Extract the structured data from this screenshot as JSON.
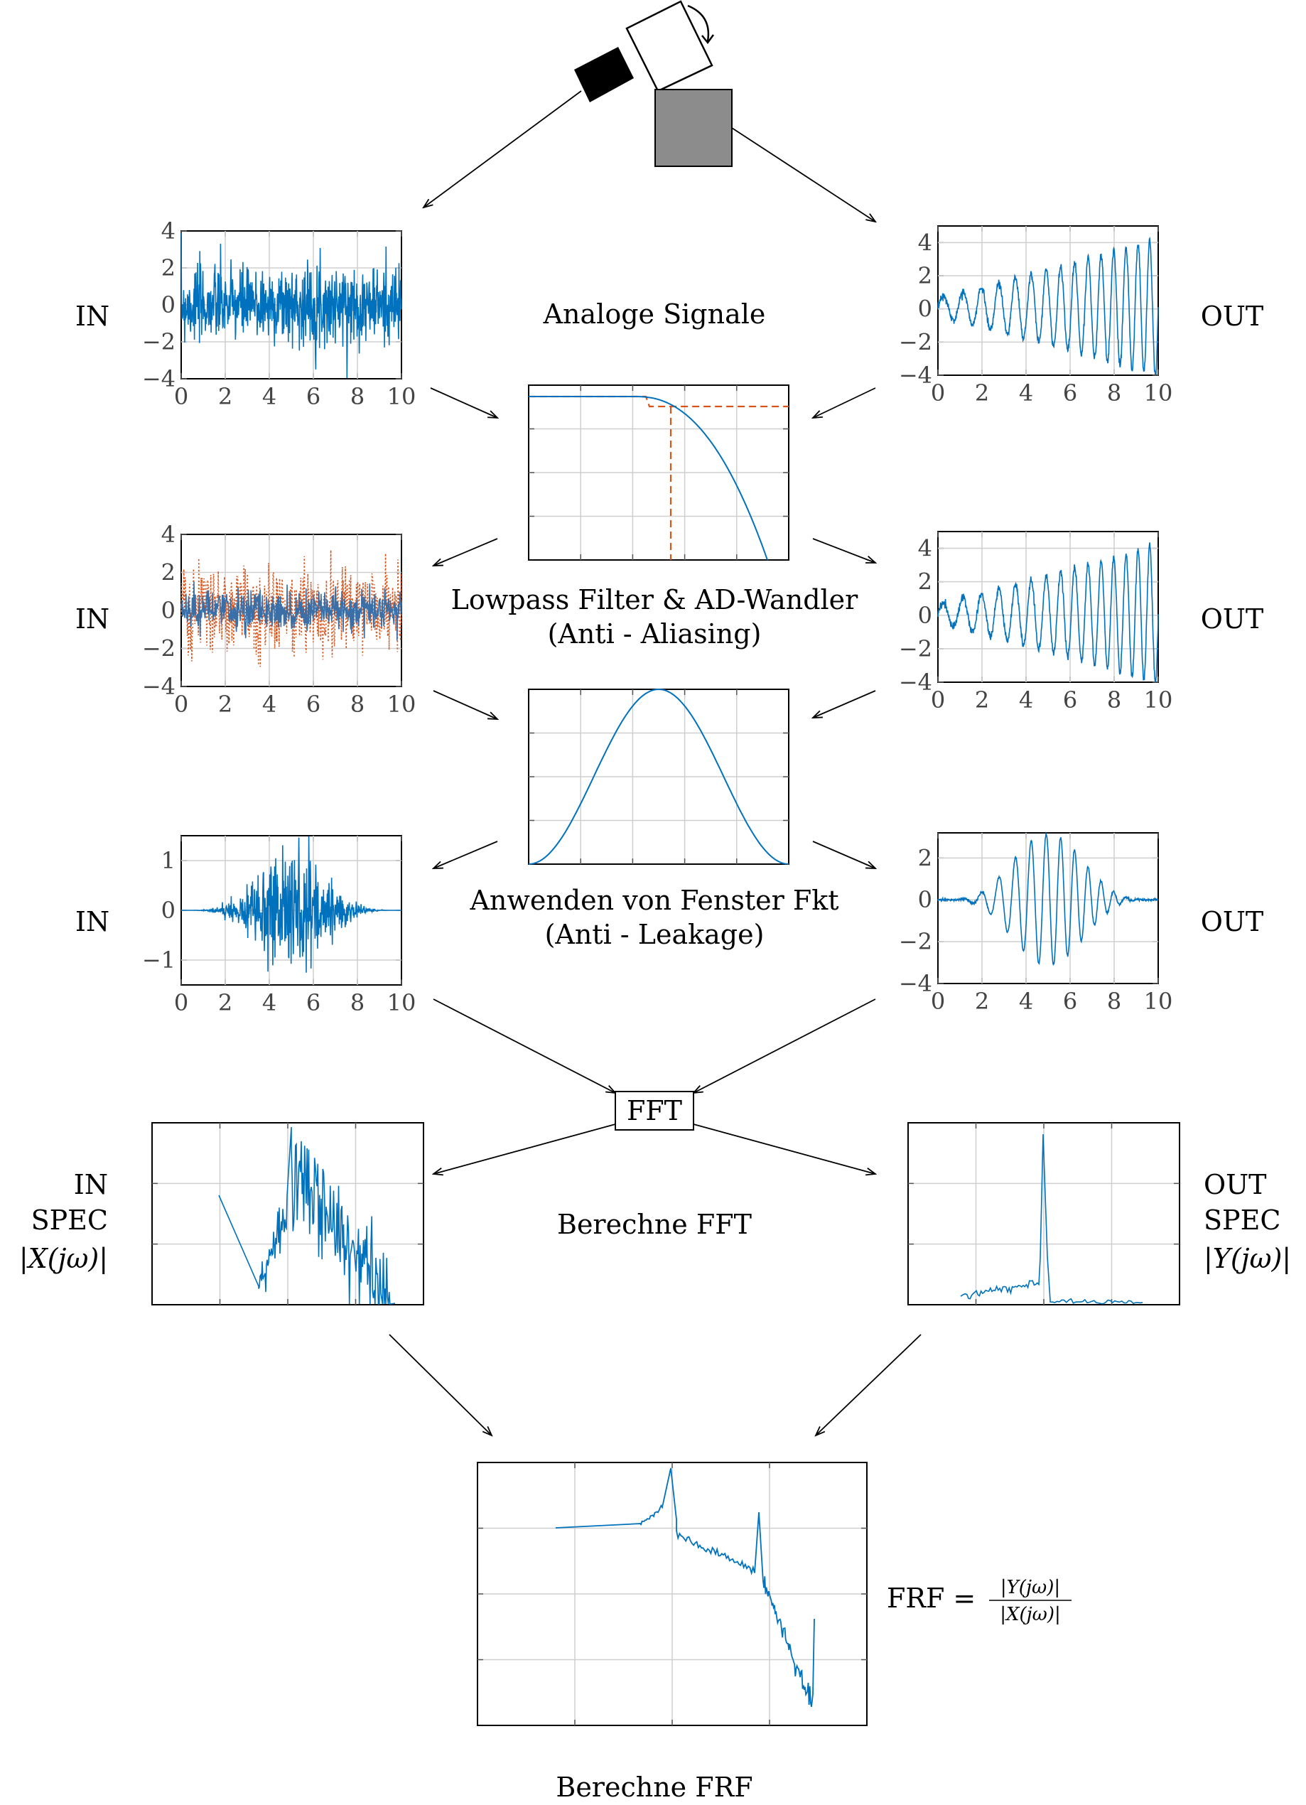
{
  "colors": {
    "signal": "#0072bd",
    "filtered": "#d95319",
    "dashed": "#d95319",
    "grid": "#cfcfcf",
    "shaker": "#000000",
    "specimen": "#8c8c8c"
  },
  "stages": {
    "analog": "Analoge Signale",
    "filter": [
      "Lowpass Filter & AD-Wandler",
      "(Anti - Aliasing)"
    ],
    "window": [
      "Anwenden von Fenster Fkt",
      "(Anti - Leakage)"
    ],
    "fft_box": "FFT",
    "fft": "Berechne FFT",
    "frf": "Berechne FRF"
  },
  "labels": {
    "in": "IN",
    "out": "OUT",
    "in_spec": [
      "IN",
      "SPEC",
      "|X(jω)|"
    ],
    "out_spec": [
      "OUT",
      "SPEC",
      "|Y(jω)|"
    ],
    "frf_lhs": "FRF =",
    "frf_num": "|Y(jω)|",
    "frf_den": "|X(jω)|"
  },
  "chart_data": [
    {
      "id": "in_analog",
      "type": "line",
      "x_range": [
        0,
        10
      ],
      "ylim": [
        -4,
        4
      ],
      "xticks": [
        "0",
        "2",
        "4",
        "6",
        "8",
        "10"
      ],
      "yticks": [
        "4",
        "2",
        "0",
        "−2",
        "−4"
      ],
      "series": [
        {
          "kind": "random_noise",
          "std": 1.0
        }
      ]
    },
    {
      "id": "out_analog",
      "type": "line",
      "x_range": [
        0,
        10
      ],
      "ylim": [
        -4,
        5
      ],
      "xticks": [
        "0",
        "2",
        "4",
        "6",
        "8",
        "10"
      ],
      "yticks": [
        "4",
        "2",
        "0",
        "−2",
        "−4"
      ],
      "series": [
        {
          "kind": "growing_oscillation",
          "cycles": 15,
          "amplitude_end": 4.2
        }
      ]
    },
    {
      "id": "lowpass_filter",
      "type": "line",
      "ticks_labeled": false,
      "series": [
        {
          "kind": "filter_response"
        },
        {
          "kind": "ideal_cutoff_dashed"
        }
      ]
    },
    {
      "id": "in_sampled",
      "type": "line",
      "x_range": [
        0,
        10
      ],
      "ylim": [
        -4,
        4
      ],
      "xticks": [
        "0",
        "2",
        "4",
        "6",
        "8",
        "10"
      ],
      "yticks": [
        "4",
        "2",
        "0",
        "−2",
        "−4"
      ],
      "series": [
        {
          "kind": "random_noise_dotted",
          "std": 1.1
        },
        {
          "kind": "random_noise_filtered",
          "std": 0.5
        }
      ]
    },
    {
      "id": "out_sampled",
      "type": "line",
      "x_range": [
        0,
        10
      ],
      "ylim": [
        -4,
        5
      ],
      "xticks": [
        "0",
        "2",
        "4",
        "6",
        "8",
        "10"
      ],
      "yticks": [
        "4",
        "2",
        "0",
        "−2",
        "−4"
      ],
      "series": [
        {
          "kind": "growing_oscillation",
          "cycles": 15,
          "amplitude_end": 4.2
        }
      ]
    },
    {
      "id": "window_function",
      "type": "line",
      "ticks_labeled": false,
      "series": [
        {
          "kind": "hann_window"
        }
      ]
    },
    {
      "id": "in_windowed",
      "type": "line",
      "x_range": [
        0,
        10
      ],
      "ylim": [
        -1.5,
        1.5
      ],
      "xticks": [
        "0",
        "2",
        "4",
        "6",
        "8",
        "10"
      ],
      "yticks": [
        "1",
        "0",
        "−1"
      ],
      "series": [
        {
          "kind": "windowed_noise",
          "peak": 0.9
        }
      ]
    },
    {
      "id": "out_windowed",
      "type": "line",
      "x_range": [
        0,
        10
      ],
      "ylim": [
        -4,
        3.2
      ],
      "xticks": [
        "0",
        "2",
        "4",
        "6",
        "8",
        "10"
      ],
      "yticks": [
        "2",
        "0",
        "−2",
        "−4"
      ],
      "series": [
        {
          "kind": "windowed_oscillation",
          "cycles": 15,
          "peak": 2.9
        }
      ]
    },
    {
      "id": "in_spectrum",
      "type": "line",
      "ticks_labeled": false,
      "series": [
        {
          "kind": "noisy_spectrum"
        }
      ]
    },
    {
      "id": "out_spectrum",
      "type": "line",
      "ticks_labeled": false,
      "series": [
        {
          "kind": "single_peak_spectrum"
        }
      ]
    },
    {
      "id": "frf",
      "type": "line",
      "ticks_labeled": false,
      "series": [
        {
          "kind": "frf_two_resonances"
        }
      ]
    }
  ]
}
